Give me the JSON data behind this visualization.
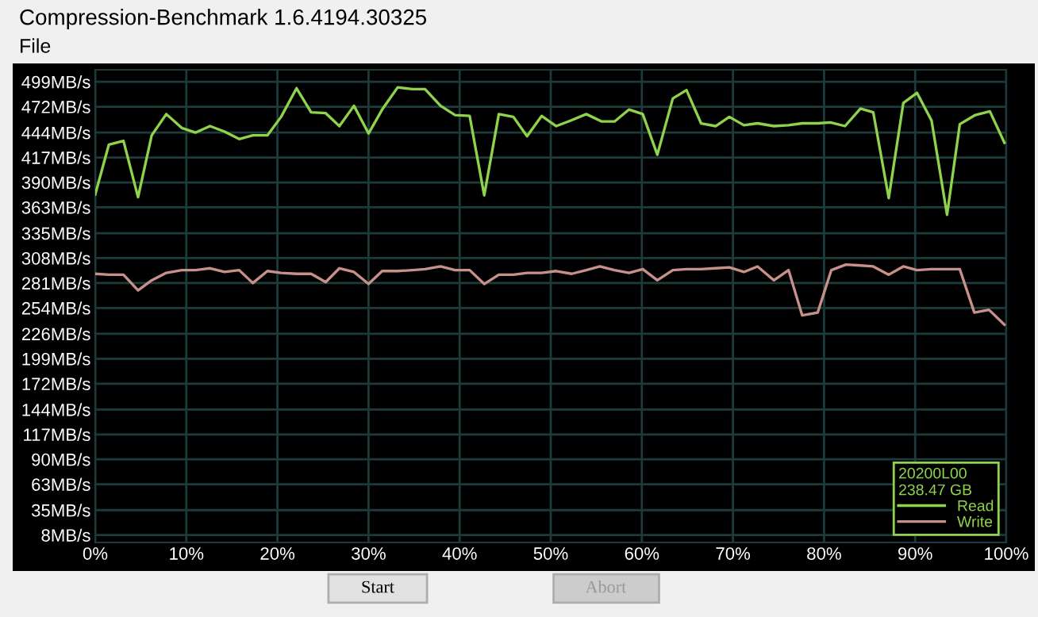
{
  "chart_data": {
    "type": "line",
    "title": "Compression-Benchmark 1.6.4194.30325",
    "annotations": [
      "File",
      "Start",
      "Abort"
    ],
    "legend_title": "20200L00\n238.47 GB",
    "series": [
      {
        "name": "Read",
        "color": "#8fd24c",
        "x": [
          0,
          1.5,
          3.1,
          4.7,
          6.2,
          7.8,
          9.5,
          11.0,
          12.6,
          14.2,
          15.8,
          17.3,
          18.9,
          20.4,
          22.1,
          23.7,
          25.3,
          26.8,
          28.4,
          30.0,
          31.5,
          33.2,
          34.8,
          36.2,
          37.9,
          39.5,
          41.1,
          42.7,
          44.3,
          45.9,
          47.4,
          49.0,
          50.6,
          52.2,
          53.9,
          55.6,
          57.0,
          58.6,
          60.1,
          61.7,
          63.4,
          64.9,
          66.5,
          68.1,
          69.6,
          71.2,
          72.7,
          74.5,
          76.1,
          77.6,
          79.3,
          80.7,
          82.3,
          84.0,
          85.4,
          87.1,
          88.7,
          90.2,
          91.8,
          93.5,
          94.9,
          96.6,
          98.2,
          99.8
        ],
        "values": [
          377,
          431,
          435,
          374,
          441,
          464,
          449,
          444,
          451,
          445,
          437,
          441,
          441,
          461,
          492,
          466,
          465,
          451,
          473,
          443,
          469,
          493,
          491,
          491,
          473,
          463,
          462,
          376,
          464,
          461,
          440,
          462,
          451,
          457,
          464,
          456,
          456,
          469,
          464,
          420,
          481,
          490,
          454,
          451,
          461,
          452,
          454,
          451,
          452,
          454,
          454,
          455,
          451,
          470,
          466,
          373,
          476,
          487,
          457,
          355,
          453,
          463,
          467,
          433
        ]
      },
      {
        "name": "Write",
        "color": "#c8908a",
        "x": [
          0,
          1.5,
          3.1,
          4.7,
          6.2,
          7.8,
          9.5,
          11.0,
          12.6,
          14.2,
          15.8,
          17.3,
          18.9,
          20.4,
          22.1,
          23.7,
          25.3,
          26.8,
          28.4,
          30.0,
          31.5,
          33.2,
          34.8,
          36.2,
          37.9,
          39.5,
          41.1,
          42.7,
          44.3,
          45.9,
          47.4,
          49.0,
          50.6,
          52.3,
          53.9,
          55.4,
          57.0,
          58.6,
          60.1,
          61.7,
          63.4,
          64.9,
          66.5,
          68.1,
          69.6,
          71.2,
          72.7,
          74.5,
          76.1,
          77.6,
          79.3,
          80.8,
          82.4,
          84.0,
          85.4,
          87.1,
          88.7,
          90.2,
          91.8,
          93.5,
          94.9,
          96.5,
          98.1,
          99.8
        ],
        "values": [
          291,
          290,
          290,
          273,
          284,
          292,
          295,
          295,
          297,
          293,
          295,
          281,
          294,
          292,
          291,
          291,
          282,
          297,
          293,
          280,
          294,
          294,
          295,
          296,
          299,
          295,
          295,
          280,
          290,
          290,
          292,
          292,
          294,
          291,
          295,
          299,
          295,
          292,
          296,
          284,
          295,
          296,
          296,
          297,
          298,
          293,
          299,
          284,
          295,
          246,
          249,
          295,
          301,
          300,
          299,
          290,
          299,
          295,
          296,
          296,
          296,
          249,
          252,
          236
        ]
      }
    ],
    "xlim": [
      0,
      100
    ],
    "xticks": [
      {
        "value": 0,
        "label": "0%"
      },
      {
        "value": 10,
        "label": "10%"
      },
      {
        "value": 20,
        "label": "20%"
      },
      {
        "value": 30,
        "label": "30%"
      },
      {
        "value": 40,
        "label": "40%"
      },
      {
        "value": 50,
        "label": "50%"
      },
      {
        "value": 60,
        "label": "60%"
      },
      {
        "value": 70,
        "label": "70%"
      },
      {
        "value": 80,
        "label": "80%"
      },
      {
        "value": 90,
        "label": "90%"
      },
      {
        "value": 100,
        "label": "100%"
      }
    ],
    "ylim": [
      0,
      512
    ],
    "yticks": [
      {
        "value": 8,
        "label": "8MB/s"
      },
      {
        "value": 35,
        "label": "35MB/s"
      },
      {
        "value": 63,
        "label": "63MB/s"
      },
      {
        "value": 90,
        "label": "90MB/s"
      },
      {
        "value": 117,
        "label": "117MB/s"
      },
      {
        "value": 144,
        "label": "144MB/s"
      },
      {
        "value": 172,
        "label": "172MB/s"
      },
      {
        "value": 199,
        "label": "199MB/s"
      },
      {
        "value": 226,
        "label": "226MB/s"
      },
      {
        "value": 254,
        "label": "254MB/s"
      },
      {
        "value": 281,
        "label": "281MB/s"
      },
      {
        "value": 308,
        "label": "308MB/s"
      },
      {
        "value": 335,
        "label": "335MB/s"
      },
      {
        "value": 363,
        "label": "363MB/s"
      },
      {
        "value": 390,
        "label": "390MB/s"
      },
      {
        "value": 417,
        "label": "417MB/s"
      },
      {
        "value": 444,
        "label": "444MB/s"
      },
      {
        "value": 472,
        "label": "472MB/s"
      },
      {
        "value": 499,
        "label": "499MB/s"
      }
    ],
    "grid": true,
    "legend": "bottom right",
    "marker": "none",
    "line_style": "solid"
  }
}
